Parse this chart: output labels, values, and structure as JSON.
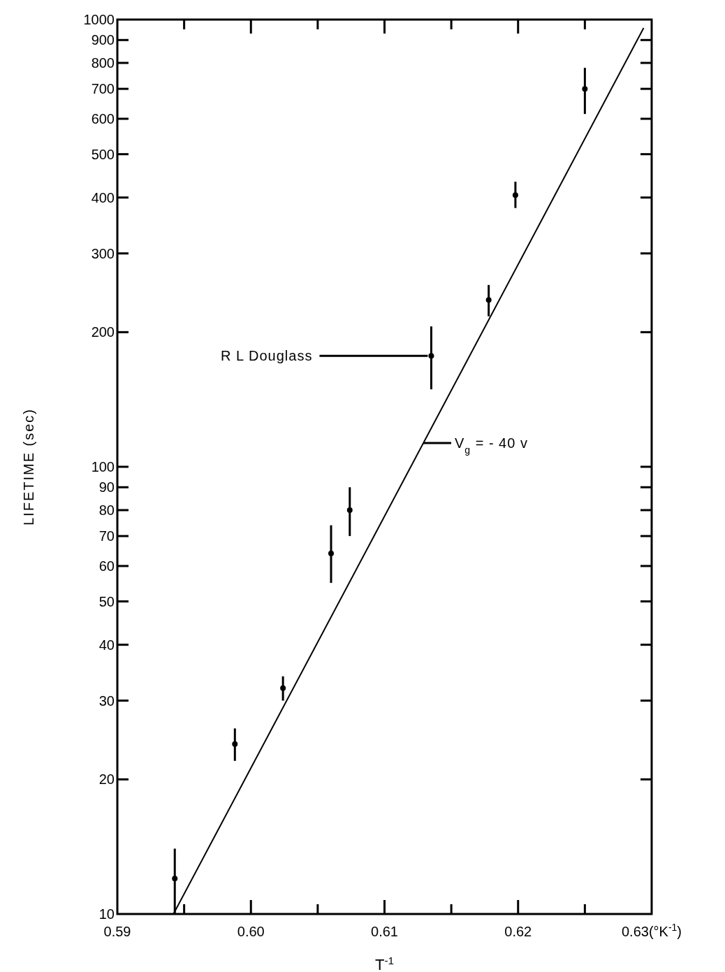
{
  "chart_data": {
    "type": "scatter",
    "xlabel": "T$^{-1}$",
    "ylabel": "LIFETIME (sec)",
    "log": "y",
    "grid": false,
    "marker": "circle",
    "xlim": [
      0.59,
      0.63
    ],
    "ylim": [
      10,
      1000
    ],
    "xticks": [
      0.59,
      {
        "value": 0.595,
        "label": null
      },
      {
        "value": 0.6,
        "label": "0.60"
      },
      {
        "value": 0.605,
        "label": null
      },
      0.61,
      {
        "value": 0.615,
        "label": null
      },
      0.62,
      {
        "value": 0.625,
        "label": null
      },
      {
        "value": 0.63,
        "label": "0.63(°K$^{-1}$)"
      }
    ],
    "yticks": [
      10,
      20,
      30,
      40,
      50,
      60,
      70,
      80,
      90,
      100,
      200,
      300,
      400,
      500,
      600,
      700,
      800,
      900,
      1000
    ],
    "series": [
      {
        "color": "#000000",
        "x": [
          0.5943,
          0.5988,
          0.6024,
          0.606,
          0.6074,
          0.6135,
          0.6178,
          0.6198,
          0.625
        ],
        "values": [
          12,
          24,
          32,
          64,
          80,
          177,
          236,
          405,
          700
        ],
        "errors": [
          [
            10,
            14
          ],
          [
            22,
            26
          ],
          [
            30,
            34
          ],
          [
            55,
            74
          ],
          [
            70,
            90
          ],
          [
            149,
            206
          ],
          [
            217,
            255
          ],
          [
            379,
            434
          ],
          [
            615,
            780
          ]
        ]
      },
      {
        "type": "line",
        "color": "#000000",
        "marker": "none",
        "x": [
          0.5942,
          0.6294
        ],
        "values": [
          10,
          958
        ]
      }
    ],
    "annotations": [
      {
        "text": "R L Douglass",
        "x": 0.6135,
        "y": 177
      },
      {
        "text": "V$_{g}$ = - 40 v",
        "x": 0.6129,
        "y": 113
      }
    ]
  }
}
